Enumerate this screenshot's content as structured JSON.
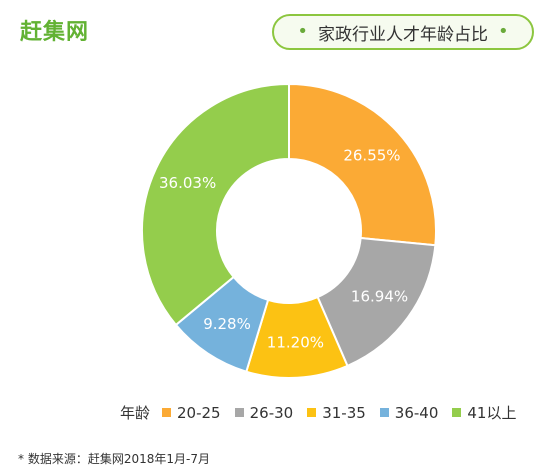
{
  "brand": "赶集网",
  "title": "家政行业人才年龄占比",
  "source": "* 数据来源：赶集网2018年1月-7月",
  "chart_data": {
    "type": "pie",
    "style": "donut",
    "legend_title": "年龄",
    "legend_position": "bottom",
    "categories": [
      "20-25",
      "26-30",
      "31-35",
      "36-40",
      "41以上"
    ],
    "values": [
      26.55,
      16.94,
      11.2,
      9.28,
      36.03
    ],
    "labels": [
      "26.55%",
      "16.94%",
      "11.20%",
      "9.28%",
      "36.03%"
    ],
    "colors": [
      "#fbaa35",
      "#a7a7a7",
      "#fcc213",
      "#75b2dc",
      "#94cd4c"
    ]
  }
}
